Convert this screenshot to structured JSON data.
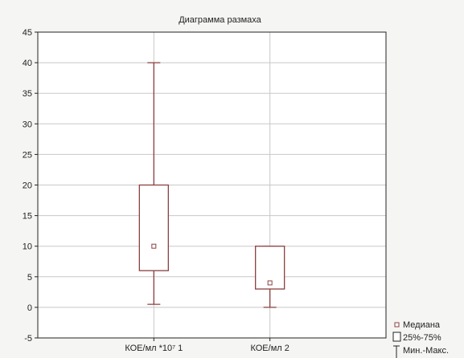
{
  "chart_data": {
    "type": "box",
    "title": "Диаграмма размаха",
    "xlabel": "",
    "ylabel": "",
    "ylim": [
      -5,
      45
    ],
    "yticks": [
      -5,
      0,
      5,
      10,
      15,
      20,
      25,
      30,
      35,
      40,
      45
    ],
    "categories": [
      "КОЕ/мл *10⁷ 1",
      "КОЕ/мл 2"
    ],
    "boxes": [
      {
        "category": "КОЕ/мл *10⁷ 1",
        "min": 0.5,
        "q1": 6,
        "median": 10,
        "q3": 20,
        "max": 40
      },
      {
        "category": "КОЕ/мл 2",
        "min": 0,
        "q1": 3,
        "median": 4,
        "q3": 10,
        "max": 10
      }
    ],
    "grid": true,
    "legend": {
      "position": "bottom-right",
      "items": [
        "Медиана",
        "25%-75%",
        "Мин.-Макс."
      ]
    },
    "colors": {
      "box": "#8b4040",
      "grid": "#c8c8c8",
      "axis": "#222222",
      "background": "#f5f5f3",
      "plot_background": "#ffffff"
    }
  }
}
